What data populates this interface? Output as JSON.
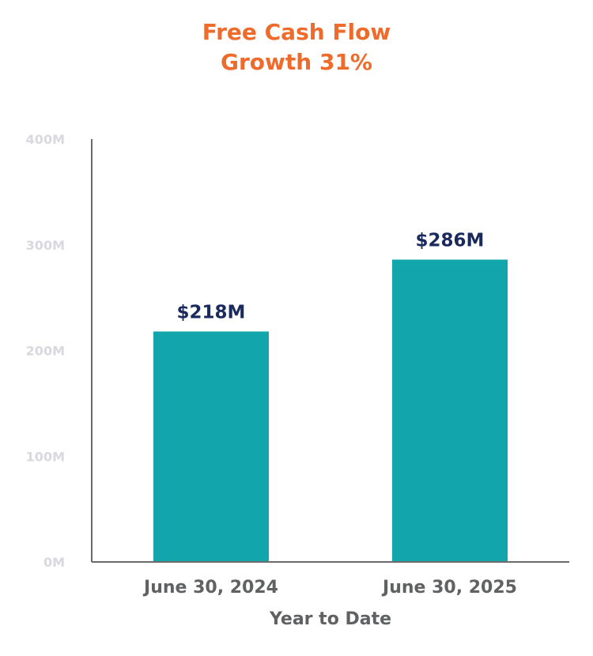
{
  "chart_data": {
    "type": "bar",
    "title_lines": [
      "Free Cash Flow",
      "Growth 31%"
    ],
    "categories": [
      "June 30, 2024",
      "June 30, 2025"
    ],
    "values": [
      218,
      286
    ],
    "data_labels": [
      "$218M",
      "$286M"
    ],
    "xlabel": "Year to Date",
    "ylabel": "",
    "ylim": [
      0,
      400
    ],
    "yticks": [
      0,
      100,
      200,
      300,
      400
    ],
    "ytick_labels": [
      "0M",
      "100M",
      "200M",
      "300M",
      "400M"
    ],
    "grid": false,
    "legend": "none"
  },
  "colors": {
    "bar": "#12a5ab",
    "title": "#ef6b2b",
    "data_label": "#1a2a5c",
    "axis": "#6b6b6b",
    "tick_label": "#d8d8de",
    "category_label": "#5f6163"
  }
}
